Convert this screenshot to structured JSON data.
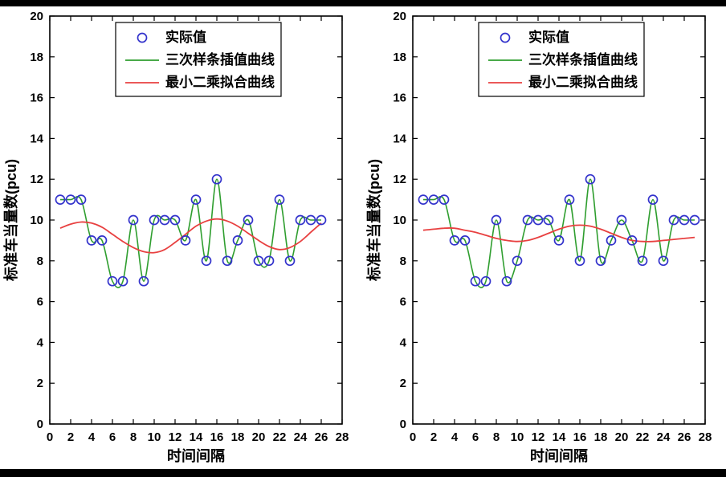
{
  "page": {
    "background": "#ffffff",
    "frame_color": "#000000"
  },
  "chart_data": [
    {
      "type": "line",
      "title": "",
      "xlabel": "时间间隔",
      "ylabel": "标准车当量数(pcu)",
      "xlim": [
        0,
        28
      ],
      "ylim": [
        0,
        20
      ],
      "xticks": [
        0,
        2,
        4,
        6,
        8,
        10,
        12,
        14,
        16,
        18,
        20,
        22,
        24,
        26,
        28
      ],
      "yticks": [
        0,
        2,
        4,
        6,
        8,
        10,
        12,
        14,
        16,
        18,
        20
      ],
      "grid": false,
      "legend_position": "top-center",
      "legend": [
        {
          "label": "实际值",
          "marker": "circle",
          "color": "#3333cc"
        },
        {
          "label": "三次样条插值曲线",
          "marker": "line",
          "color": "#2f9e2f"
        },
        {
          "label": "最小二乘拟合曲线",
          "marker": "line",
          "color": "#e84040"
        }
      ],
      "points": {
        "name": "实际值",
        "color": "#3333cc",
        "x": [
          1,
          2,
          3,
          4,
          5,
          6,
          7,
          8,
          9,
          10,
          11,
          12,
          13,
          14,
          15,
          16,
          17,
          18,
          19,
          20,
          21,
          22,
          23,
          24,
          25,
          26
        ],
        "y": [
          11,
          11,
          11,
          9,
          9,
          7,
          7,
          10,
          7,
          10,
          10,
          10,
          9,
          11,
          8,
          12,
          8,
          9,
          10,
          8,
          8,
          11,
          8,
          10,
          10,
          10
        ]
      },
      "spline": {
        "name": "三次样条插值曲线",
        "color": "#2f9e2f",
        "through_points": true
      },
      "fit_curve": {
        "name": "最小二乘拟合曲线",
        "color": "#e84040",
        "x": [
          1,
          2,
          3,
          4,
          5,
          6,
          7,
          8,
          9,
          10,
          11,
          12,
          13,
          14,
          15,
          16,
          17,
          18,
          19,
          20,
          21,
          22,
          23,
          24,
          25,
          26
        ],
        "y": [
          9.6,
          9.8,
          9.9,
          9.85,
          9.65,
          9.3,
          8.95,
          8.65,
          8.45,
          8.4,
          8.55,
          8.9,
          9.3,
          9.7,
          9.95,
          10.05,
          9.95,
          9.7,
          9.35,
          9.0,
          8.7,
          8.55,
          8.65,
          8.95,
          9.4,
          9.85
        ]
      }
    },
    {
      "type": "line",
      "title": "",
      "xlabel": "时间间隔",
      "ylabel": "标准车当量数(pcu)",
      "xlim": [
        0,
        28
      ],
      "ylim": [
        0,
        20
      ],
      "xticks": [
        0,
        2,
        4,
        6,
        8,
        10,
        12,
        14,
        16,
        18,
        20,
        22,
        24,
        26,
        28
      ],
      "yticks": [
        0,
        2,
        4,
        6,
        8,
        10,
        12,
        14,
        16,
        18,
        20
      ],
      "grid": false,
      "legend_position": "top-center",
      "legend": [
        {
          "label": "实际值",
          "marker": "circle",
          "color": "#3333cc"
        },
        {
          "label": "三次样条插值曲线",
          "marker": "line",
          "color": "#2f9e2f"
        },
        {
          "label": "最小二乘拟合曲线",
          "marker": "line",
          "color": "#e84040"
        }
      ],
      "points": {
        "name": "实际值",
        "color": "#3333cc",
        "x": [
          1,
          2,
          3,
          4,
          5,
          6,
          7,
          8,
          9,
          10,
          11,
          12,
          13,
          14,
          15,
          16,
          17,
          18,
          19,
          20,
          21,
          22,
          23,
          24,
          25,
          26,
          27
        ],
        "y": [
          11,
          11,
          11,
          9,
          9,
          7,
          7,
          10,
          7,
          8,
          10,
          10,
          10,
          9,
          11,
          8,
          12,
          8,
          9,
          10,
          9,
          8,
          11,
          8,
          10,
          10,
          10
        ]
      },
      "spline": {
        "name": "三次样条插值曲线",
        "color": "#2f9e2f",
        "through_points": true
      },
      "fit_curve": {
        "name": "最小二乘拟合曲线",
        "color": "#e84040",
        "x": [
          1,
          2,
          3,
          4,
          5,
          6,
          7,
          8,
          9,
          10,
          11,
          12,
          13,
          14,
          15,
          16,
          17,
          18,
          19,
          20,
          21,
          22,
          23,
          24,
          25,
          26,
          27
        ],
        "y": [
          9.5,
          9.55,
          9.6,
          9.6,
          9.5,
          9.4,
          9.25,
          9.1,
          9.0,
          8.95,
          9.0,
          9.15,
          9.35,
          9.55,
          9.7,
          9.75,
          9.7,
          9.55,
          9.35,
          9.15,
          9.0,
          8.95,
          8.95,
          9.0,
          9.05,
          9.1,
          9.15
        ]
      }
    }
  ]
}
